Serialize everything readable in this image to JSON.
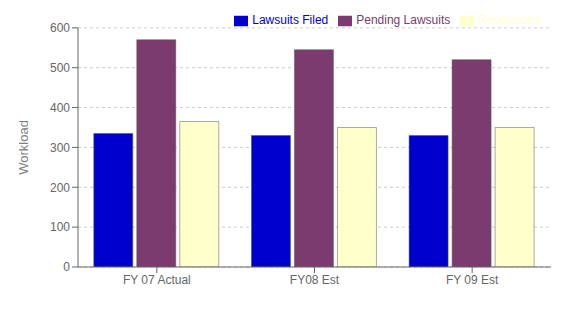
{
  "chart_data": {
    "type": "bar",
    "categories": [
      "FY 07 Actual",
      "FY08 Est",
      "FY 09 Est"
    ],
    "series": [
      {
        "name": "Lawsuits Filed",
        "values": [
          335,
          330,
          330
        ],
        "color": "#0000CC"
      },
      {
        "name": "Pending Lawsuits",
        "values": [
          570,
          545,
          520
        ],
        "color": "#7B3B6E"
      },
      {
        "name": "Resolutions",
        "values": [
          365,
          350,
          350
        ],
        "color": "#FFFFCC"
      }
    ],
    "y_label": "Workload",
    "ylim": [
      0,
      600
    ],
    "yticks": [
      0,
      100,
      200,
      300,
      400,
      500,
      600
    ],
    "grid": true,
    "legend": "upper right"
  }
}
